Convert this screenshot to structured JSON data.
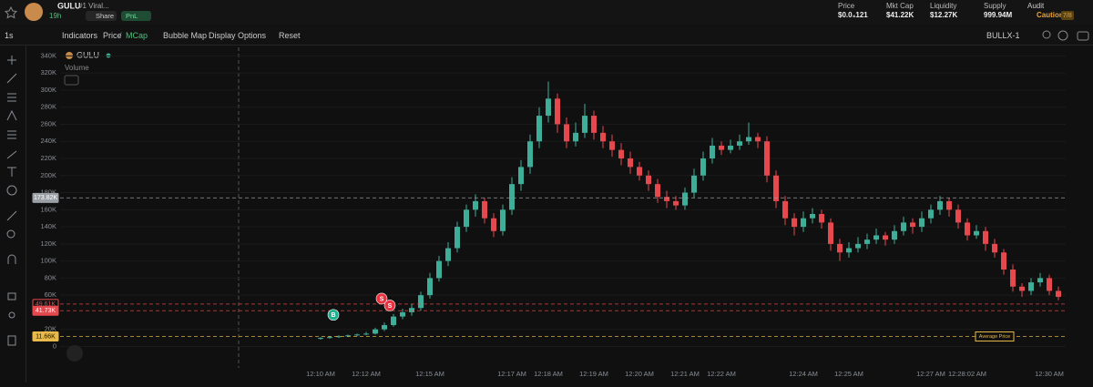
{
  "header": {
    "name": "GULU",
    "tagline": "#1 Viral...",
    "age": "19h",
    "share": "Share",
    "pnl": "PnL",
    "stats": [
      {
        "label": "Price",
        "value": "$0.0₄121"
      },
      {
        "label": "Mkt Cap",
        "value": "$41.22K"
      },
      {
        "label": "Liquidity",
        "value": "$12.27K"
      },
      {
        "label": "Supply",
        "value": "999.94M"
      }
    ],
    "audit": {
      "label": "Audit",
      "value": "Caution",
      "score": "7/8"
    }
  },
  "toolbar": {
    "interval": "1s",
    "indicators": "Indicators",
    "price": "Price",
    "separator": "/",
    "mcap": "MCap",
    "bubble_map": "Bubble Map",
    "display_options": "Display Options",
    "reset": "Reset",
    "account": "BULLX-1"
  },
  "chart_data": {
    "type": "candlestick",
    "symbol": "GULU",
    "volume_label": "Volume",
    "up_color": "#3fae98",
    "down_color": "#e5484d",
    "ylim": [
      -24,
      350
    ],
    "yticks": [
      0,
      {
        "value": 20,
        "label": "20K"
      },
      {
        "value": 60,
        "label": "60K"
      },
      {
        "value": 80,
        "label": "80K"
      },
      {
        "value": 100,
        "label": "100K"
      },
      {
        "value": 120,
        "label": "120K"
      },
      {
        "value": 140,
        "label": "140K"
      },
      {
        "value": 160,
        "label": "160K"
      },
      {
        "value": 180,
        "label": "180K"
      },
      {
        "value": 200,
        "label": "200K"
      },
      {
        "value": 220,
        "label": "220K"
      },
      {
        "value": 240,
        "label": "240K"
      },
      {
        "value": 260,
        "label": "260K"
      },
      {
        "value": 280,
        "label": "280K"
      },
      {
        "value": 300,
        "label": "300K"
      },
      {
        "value": 320,
        "label": "320K"
      },
      {
        "value": 340,
        "label": "340K"
      }
    ],
    "categories": [
      "12:10 AM",
      null,
      null,
      null,
      null,
      "12:12 AM",
      null,
      null,
      null,
      null,
      null,
      null,
      "12:15 AM",
      null,
      null,
      null,
      null,
      null,
      null,
      null,
      null,
      "12:17 AM",
      null,
      null,
      null,
      "12:18 AM",
      null,
      null,
      null,
      null,
      "12:19 AM",
      null,
      null,
      null,
      null,
      "12:20 AM",
      null,
      null,
      null,
      null,
      "12:21 AM",
      null,
      null,
      null,
      "12:22 AM",
      null,
      null,
      null,
      null,
      null,
      null,
      null,
      null,
      "12:24 AM",
      null,
      null,
      null,
      null,
      "12:25 AM",
      null,
      null,
      null,
      null,
      null,
      null,
      null,
      null,
      "12:27 AM",
      null,
      null,
      null,
      "12:28:02 AM",
      null,
      null,
      null,
      null,
      null,
      null,
      null,
      null,
      "12:30 AM",
      null
    ],
    "candles": [
      [
        9,
        11,
        8,
        10
      ],
      [
        10,
        12,
        9,
        11
      ],
      [
        11,
        13,
        10,
        12
      ],
      [
        12,
        14,
        11,
        13
      ],
      [
        13,
        15,
        12,
        14
      ],
      [
        14,
        17,
        13,
        15
      ],
      [
        15,
        22,
        14,
        20
      ],
      [
        20,
        28,
        18,
        25
      ],
      [
        25,
        38,
        23,
        35
      ],
      [
        35,
        44,
        32,
        40
      ],
      [
        40,
        50,
        36,
        45
      ],
      [
        45,
        64,
        42,
        60
      ],
      [
        60,
        86,
        56,
        80
      ],
      [
        80,
        106,
        76,
        100
      ],
      [
        100,
        122,
        94,
        115
      ],
      [
        115,
        146,
        110,
        140
      ],
      [
        140,
        166,
        134,
        160
      ],
      [
        160,
        178,
        152,
        170
      ],
      [
        170,
        174,
        144,
        150
      ],
      [
        150,
        156,
        128,
        135
      ],
      [
        135,
        166,
        130,
        160
      ],
      [
        160,
        198,
        154,
        190
      ],
      [
        190,
        218,
        182,
        210
      ],
      [
        210,
        248,
        202,
        240
      ],
      [
        240,
        280,
        232,
        270
      ],
      [
        270,
        310,
        262,
        290
      ],
      [
        290,
        296,
        250,
        260
      ],
      [
        260,
        268,
        232,
        240
      ],
      [
        240,
        262,
        234,
        250
      ],
      [
        250,
        284,
        244,
        270
      ],
      [
        270,
        276,
        242,
        250
      ],
      [
        250,
        258,
        232,
        240
      ],
      [
        240,
        248,
        222,
        230
      ],
      [
        230,
        238,
        212,
        220
      ],
      [
        220,
        228,
        202,
        210
      ],
      [
        210,
        216,
        194,
        200
      ],
      [
        200,
        206,
        182,
        190
      ],
      [
        190,
        196,
        168,
        175
      ],
      [
        175,
        182,
        162,
        170
      ],
      [
        170,
        176,
        160,
        165
      ],
      [
        165,
        186,
        160,
        180
      ],
      [
        180,
        208,
        174,
        200
      ],
      [
        200,
        228,
        194,
        220
      ],
      [
        220,
        244,
        214,
        235
      ],
      [
        235,
        240,
        224,
        230
      ],
      [
        230,
        242,
        226,
        235
      ],
      [
        235,
        248,
        230,
        240
      ],
      [
        240,
        262,
        236,
        245
      ],
      [
        245,
        250,
        232,
        240
      ],
      [
        240,
        246,
        192,
        200
      ],
      [
        200,
        206,
        162,
        170
      ],
      [
        170,
        176,
        142,
        150
      ],
      [
        150,
        156,
        130,
        140
      ],
      [
        140,
        158,
        134,
        150
      ],
      [
        150,
        162,
        144,
        155
      ],
      [
        155,
        160,
        138,
        145
      ],
      [
        145,
        150,
        112,
        120
      ],
      [
        120,
        126,
        100,
        110
      ],
      [
        110,
        122,
        104,
        115
      ],
      [
        115,
        128,
        110,
        120
      ],
      [
        120,
        132,
        114,
        125
      ],
      [
        125,
        138,
        120,
        130
      ],
      [
        130,
        134,
        118,
        125
      ],
      [
        125,
        142,
        120,
        135
      ],
      [
        135,
        152,
        130,
        145
      ],
      [
        145,
        150,
        132,
        140
      ],
      [
        140,
        158,
        134,
        150
      ],
      [
        150,
        166,
        144,
        160
      ],
      [
        160,
        176,
        154,
        170
      ],
      [
        170,
        174,
        152,
        160
      ],
      [
        160,
        166,
        138,
        145
      ],
      [
        145,
        150,
        124,
        130
      ],
      [
        130,
        142,
        126,
        135
      ],
      [
        135,
        140,
        112,
        120
      ],
      [
        120,
        126,
        104,
        110
      ],
      [
        110,
        114,
        84,
        90
      ],
      [
        90,
        96,
        64,
        70
      ],
      [
        70,
        74,
        58,
        65
      ],
      [
        65,
        80,
        60,
        75
      ],
      [
        75,
        86,
        70,
        80
      ],
      [
        80,
        84,
        60,
        65
      ],
      [
        65,
        70,
        54,
        58
      ]
    ],
    "price_lines": [
      {
        "value": 173.82,
        "label": "173.82K",
        "color": "#9aa0a6"
      },
      {
        "value": 49.61,
        "label": "49.61K",
        "color": "#e5484d"
      },
      {
        "value": 41.73,
        "label": "41.73K",
        "color": "#e5484d"
      },
      {
        "value": 11.66,
        "label": "11.66K",
        "color": "#e9b949",
        "annotation": "Average Price"
      }
    ],
    "trades": [
      {
        "label": "B",
        "value": 37,
        "color": "#1fae8e"
      },
      {
        "label": "S",
        "value": 56,
        "color": "#e8323f"
      },
      {
        "label": "S",
        "value": 48,
        "color": "#e8323f"
      }
    ]
  }
}
